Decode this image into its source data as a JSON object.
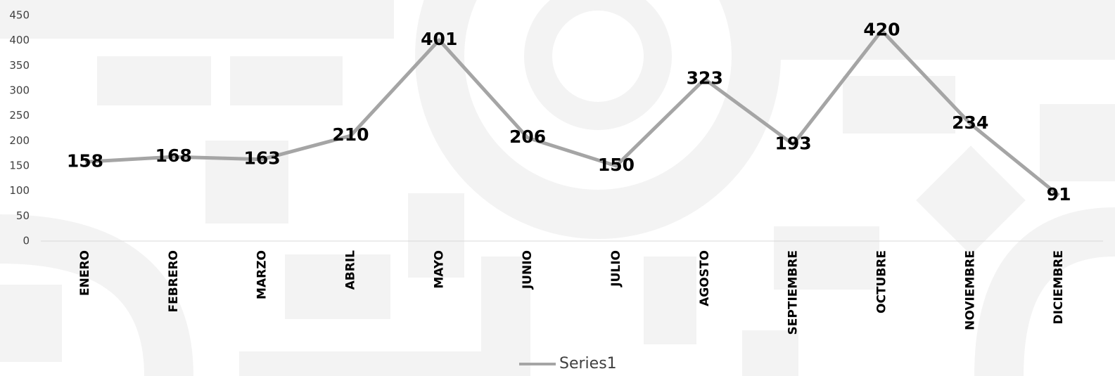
{
  "chart_data": {
    "type": "line",
    "categories": [
      "ENERO",
      "FEBRERO",
      "MARZO",
      "ABRIL",
      "MAYO",
      "JUNIO",
      "JULIO",
      "AGOSTO",
      "SEPTIEMBRE",
      "OCTUBRE",
      "NOVIEMBRE",
      "DICIEMBRE"
    ],
    "series": [
      {
        "name": "Series1",
        "color": "#a5a5a5",
        "values": [
          158,
          168,
          163,
          210,
          401,
          206,
          150,
          323,
          193,
          420,
          234,
          91
        ]
      }
    ],
    "ylim": [
      0,
      450
    ],
    "yticks": [
      0,
      50,
      100,
      150,
      200,
      250,
      300,
      350,
      400,
      450
    ],
    "legend": "bottom"
  }
}
